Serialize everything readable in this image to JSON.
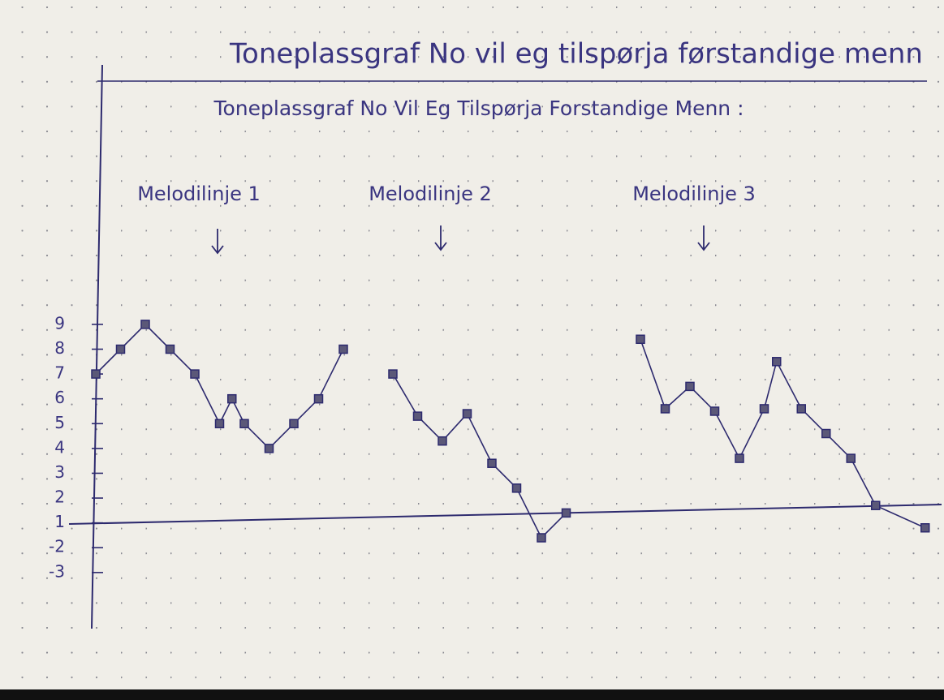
{
  "header": "Toneplassgraf No vil eg tilspørja førstandige menn",
  "chart_data": {
    "type": "line",
    "title": "Toneplassgraf No Vil Eg Tilspørja Forstandige Menn :",
    "xlim": [
      0,
      34
    ],
    "ylim": [
      -3,
      19
    ],
    "yticks": [
      9,
      8,
      7,
      6,
      5,
      4,
      3,
      2,
      1,
      {
        "value": 0,
        "label": "-2"
      },
      {
        "value": -1,
        "label": "-3"
      }
    ],
    "series": [
      {
        "name": "Melodilinje 1",
        "color": "#2d2a6e",
        "x": [
          0,
          1,
          2,
          3,
          4,
          5,
          5.5,
          6,
          7,
          8,
          9,
          10
        ],
        "values": [
          7,
          8,
          9,
          8,
          7,
          5,
          6,
          5,
          4,
          5,
          6,
          8
        ]
      },
      {
        "name": "Melodilinje 2",
        "color": "#2d2a6e",
        "x": [
          12,
          13,
          14,
          15,
          16,
          17,
          18,
          19
        ],
        "values": [
          7,
          5.3,
          4.3,
          5.4,
          3.4,
          2.4,
          0.4,
          1.4
        ]
      },
      {
        "name": "Melodilinje 3",
        "color": "#2d2a6e",
        "x": [
          22,
          23,
          24,
          25,
          26,
          27,
          27.5,
          28.5,
          29.5,
          30.5,
          31.5,
          33.5
        ],
        "values": [
          8.4,
          5.6,
          6.5,
          5.5,
          3.6,
          5.6,
          7.5,
          5.6,
          4.6,
          3.6,
          1.7,
          0.8
        ]
      }
    ]
  }
}
